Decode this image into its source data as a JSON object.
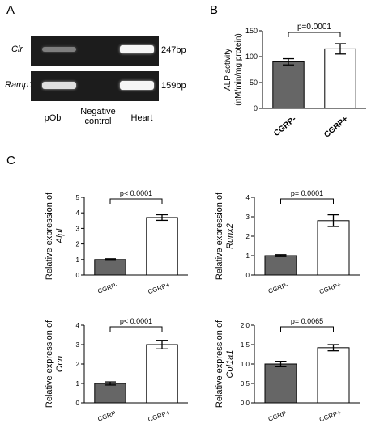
{
  "panel_A": {
    "letter": "A",
    "genes": [
      {
        "name": "Clr",
        "size": "247bp"
      },
      {
        "name": "Ramp1",
        "size": "159bp"
      }
    ],
    "lanes": [
      "pOb",
      "Negative control",
      "Heart"
    ],
    "band_intensity": {
      "Clr": [
        0.45,
        0.0,
        1.0
      ],
      "Ramp1": [
        0.9,
        0.0,
        1.0
      ]
    }
  },
  "chart_data": [
    {
      "id": "B",
      "panel": "B",
      "type": "bar",
      "categories": [
        "CGRP-",
        "CGRP+"
      ],
      "values": [
        90,
        115
      ],
      "errors": [
        6,
        10
      ],
      "ylabel": "ALP activity",
      "ylabel2": "(nM/min/mg protein)",
      "ylabel_italic": false,
      "ylim": [
        0,
        150
      ],
      "yticks": [
        0,
        50,
        100,
        150
      ],
      "pvalue": "p=0.0001",
      "colors": [
        "#666666",
        "#ffffff"
      ]
    },
    {
      "id": "Alpl",
      "panel": "C",
      "type": "bar",
      "categories": [
        "CGRP-",
        "CGRP+"
      ],
      "values": [
        1.0,
        3.7
      ],
      "errors": [
        0.05,
        0.18
      ],
      "ylabel": "Relative expression of",
      "ylabel2": "Alpl",
      "ylabel_italic": true,
      "ylim": [
        0,
        5
      ],
      "yticks": [
        0,
        1,
        2,
        3,
        4,
        5
      ],
      "pvalue": "p< 0.0001",
      "colors": [
        "#666666",
        "#ffffff"
      ]
    },
    {
      "id": "Runx2",
      "panel": "C",
      "type": "bar",
      "categories": [
        "CGRP-",
        "CGRP+"
      ],
      "values": [
        1.0,
        2.8
      ],
      "errors": [
        0.05,
        0.3
      ],
      "ylabel": "Relative expression of",
      "ylabel2": "Runx2",
      "ylabel_italic": true,
      "ylim": [
        0,
        4
      ],
      "yticks": [
        0,
        1,
        2,
        3,
        4
      ],
      "pvalue": "p= 0.0001",
      "colors": [
        "#666666",
        "#ffffff"
      ]
    },
    {
      "id": "Ocn",
      "panel": "C",
      "type": "bar",
      "categories": [
        "CGRP-",
        "CGRP+"
      ],
      "values": [
        1.0,
        3.0
      ],
      "errors": [
        0.08,
        0.22
      ],
      "ylabel": "Relative expression of",
      "ylabel2": "Ocn",
      "ylabel_italic": true,
      "ylim": [
        0,
        4
      ],
      "yticks": [
        0,
        1,
        2,
        3,
        4
      ],
      "pvalue": "p< 0.0001",
      "colors": [
        "#666666",
        "#ffffff"
      ]
    },
    {
      "id": "Col1a1",
      "panel": "C",
      "type": "bar",
      "categories": [
        "CGRP-",
        "CGRP+"
      ],
      "values": [
        1.0,
        1.42
      ],
      "errors": [
        0.07,
        0.08
      ],
      "ylabel": "Relative expression of",
      "ylabel2": "Col1a1",
      "ylabel_italic": true,
      "ylim": [
        0,
        2.0
      ],
      "yticks": [
        0,
        0.5,
        1.0,
        1.5,
        2.0
      ],
      "ytick_labels": [
        "0.0",
        "0.5",
        "1.0",
        "1.5",
        "2.0"
      ],
      "pvalue": "p= 0.0065",
      "colors": [
        "#666666",
        "#ffffff"
      ]
    }
  ]
}
